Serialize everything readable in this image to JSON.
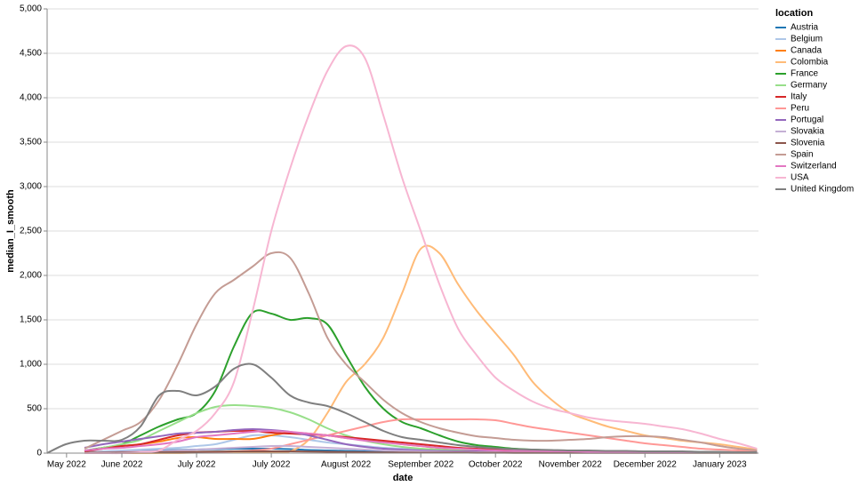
{
  "chart_data": {
    "type": "line",
    "x_label": "date",
    "y_label": "median_I_smooth",
    "legend_title": "location",
    "legend": "right",
    "grid": true,
    "xlim": [
      0,
      9.52
    ],
    "xticks": [
      {
        "value": 0.26,
        "label": "May 2022"
      },
      {
        "value": 1,
        "label": "June 2022"
      },
      {
        "value": 2,
        "label": "July 2022"
      },
      {
        "value": 3,
        "label": "July 2022"
      },
      {
        "value": 4,
        "label": "August 2022"
      },
      {
        "value": 5,
        "label": "September 2022"
      },
      {
        "value": 6,
        "label": "October 2022"
      },
      {
        "value": 7,
        "label": "November 2022"
      },
      {
        "value": 8,
        "label": "December 2022"
      },
      {
        "value": 9,
        "label": "January 2023"
      }
    ],
    "ylim": [
      0,
      5000
    ],
    "yticks": [
      0,
      500,
      {
        "value": 1000,
        "label": "1,000"
      },
      {
        "value": 1500,
        "label": "1,500"
      },
      {
        "value": 2000,
        "label": "2,000"
      },
      {
        "value": 2500,
        "label": "2,500"
      },
      {
        "value": 3000,
        "label": "3,000"
      },
      {
        "value": 3500,
        "label": "3,500"
      },
      {
        "value": 4000,
        "label": "4,000"
      },
      {
        "value": 4500,
        "label": "4,500"
      },
      {
        "value": 5000,
        "label": "5,000"
      }
    ],
    "x": [
      0,
      0.25,
      0.5,
      0.75,
      1,
      1.25,
      1.5,
      1.75,
      2,
      2.25,
      2.5,
      2.75,
      3,
      3.25,
      3.5,
      3.75,
      4,
      4.25,
      4.5,
      4.75,
      5,
      5.25,
      5.5,
      5.75,
      6,
      6.25,
      6.5,
      6.75,
      7,
      7.25,
      7.5,
      7.75,
      8,
      8.25,
      8.5,
      8.75,
      9,
      9.25,
      9.5
    ],
    "series": [
      {
        "name": "Austria",
        "color": "#1f77b4",
        "values": [
          null,
          null,
          10,
          15,
          20,
          25,
          30,
          35,
          40,
          45,
          50,
          50,
          50,
          45,
          35,
          30,
          25,
          20,
          18,
          15,
          12,
          10,
          10,
          8,
          8,
          6,
          6,
          5,
          5,
          5,
          5,
          5,
          5,
          5,
          5,
          5,
          5,
          5,
          5
        ]
      },
      {
        "name": "Belgium",
        "color": "#aec7e8",
        "values": [
          null,
          null,
          10,
          20,
          30,
          40,
          50,
          60,
          80,
          100,
          150,
          200,
          200,
          180,
          150,
          120,
          100,
          80,
          60,
          50,
          40,
          30,
          25,
          20,
          15,
          12,
          10,
          10,
          8,
          8,
          6,
          6,
          5,
          5,
          5,
          5,
          5,
          5,
          5
        ]
      },
      {
        "name": "Canada",
        "color": "#ff7f0e",
        "values": [
          null,
          null,
          20,
          60,
          80,
          100,
          130,
          170,
          180,
          160,
          160,
          160,
          200,
          230,
          220,
          200,
          170,
          150,
          130,
          100,
          80,
          60,
          50,
          40,
          35,
          30,
          30,
          25,
          25,
          25,
          20,
          20,
          20,
          20,
          15,
          15,
          10,
          10,
          10
        ]
      },
      {
        "name": "Colombia",
        "color": "#ffbb78",
        "values": [
          null,
          null,
          0,
          0,
          0,
          0,
          0,
          0,
          5,
          5,
          10,
          10,
          10,
          20,
          150,
          450,
          800,
          1000,
          1300,
          1800,
          2300,
          2250,
          1900,
          1600,
          1350,
          1100,
          800,
          600,
          450,
          370,
          300,
          250,
          200,
          170,
          140,
          120,
          100,
          70,
          40
        ]
      },
      {
        "name": "France",
        "color": "#2ca02c",
        "values": [
          null,
          null,
          30,
          60,
          100,
          200,
          300,
          380,
          450,
          700,
          1200,
          1580,
          1570,
          1500,
          1520,
          1450,
          1100,
          750,
          500,
          350,
          280,
          200,
          130,
          90,
          70,
          50,
          40,
          30,
          25,
          20,
          20,
          15,
          15,
          15,
          10,
          10,
          10,
          10,
          10
        ]
      },
      {
        "name": "Germany",
        "color": "#98df8a",
        "values": [
          null,
          null,
          20,
          60,
          100,
          150,
          250,
          350,
          450,
          520,
          540,
          530,
          510,
          460,
          380,
          280,
          200,
          140,
          100,
          70,
          50,
          40,
          30,
          25,
          20,
          20,
          15,
          15,
          15,
          10,
          10,
          10,
          10,
          10,
          10,
          10,
          10,
          10,
          10
        ]
      },
      {
        "name": "Italy",
        "color": "#d62728",
        "values": [
          null,
          null,
          20,
          50,
          80,
          100,
          150,
          200,
          230,
          240,
          250,
          250,
          230,
          220,
          210,
          200,
          180,
          160,
          140,
          120,
          100,
          80,
          60,
          50,
          40,
          35,
          30,
          25,
          20,
          20,
          15,
          15,
          15,
          10,
          10,
          10,
          10,
          10,
          10
        ]
      },
      {
        "name": "Peru",
        "color": "#ff9896",
        "values": [
          null,
          null,
          0,
          0,
          0,
          5,
          5,
          10,
          10,
          10,
          20,
          30,
          50,
          100,
          150,
          200,
          250,
          300,
          350,
          380,
          380,
          380,
          380,
          380,
          370,
          330,
          290,
          260,
          230,
          200,
          170,
          140,
          110,
          90,
          70,
          50,
          40,
          30,
          20
        ]
      },
      {
        "name": "Portugal",
        "color": "#9467bd",
        "values": [
          null,
          null,
          60,
          100,
          130,
          160,
          190,
          220,
          230,
          240,
          260,
          270,
          260,
          240,
          200,
          150,
          100,
          70,
          50,
          40,
          30,
          25,
          20,
          20,
          15,
          15,
          15,
          10,
          10,
          10,
          10,
          10,
          10,
          10,
          10,
          10,
          10,
          10,
          10
        ]
      },
      {
        "name": "Slovakia",
        "color": "#c5b0d5",
        "values": [
          null,
          null,
          5,
          10,
          15,
          20,
          25,
          30,
          40,
          50,
          60,
          70,
          80,
          80,
          70,
          60,
          50,
          40,
          30,
          25,
          20,
          15,
          10,
          10,
          10,
          8,
          8,
          6,
          6,
          5,
          5,
          5,
          5,
          5,
          5,
          5,
          5,
          5,
          5
        ]
      },
      {
        "name": "Slovenia",
        "color": "#8c564b",
        "values": [
          null,
          null,
          5,
          5,
          8,
          10,
          10,
          12,
          15,
          18,
          20,
          20,
          20,
          20,
          18,
          15,
          12,
          10,
          8,
          6,
          5,
          5,
          5,
          4,
          4,
          3,
          3,
          3,
          3,
          3,
          3,
          3,
          3,
          3,
          3,
          3,
          3,
          3,
          3
        ]
      },
      {
        "name": "Spain",
        "color": "#c49c94",
        "values": [
          null,
          null,
          50,
          150,
          250,
          350,
          600,
          1000,
          1450,
          1800,
          1950,
          2100,
          2250,
          2200,
          1800,
          1300,
          1000,
          800,
          600,
          450,
          350,
          280,
          230,
          190,
          170,
          150,
          140,
          140,
          150,
          160,
          180,
          190,
          190,
          180,
          150,
          120,
          80,
          50,
          30
        ]
      },
      {
        "name": "Switzerland",
        "color": "#e377c2",
        "values": [
          null,
          null,
          30,
          50,
          60,
          80,
          100,
          130,
          180,
          200,
          220,
          240,
          250,
          240,
          220,
          200,
          170,
          140,
          120,
          100,
          80,
          60,
          50,
          40,
          30,
          25,
          25,
          20,
          20,
          15,
          15,
          15,
          10,
          10,
          10,
          10,
          10,
          10,
          10
        ]
      },
      {
        "name": "USA",
        "color": "#f7b6d2",
        "values": [
          null,
          null,
          0,
          0,
          0,
          10,
          30,
          150,
          250,
          450,
          800,
          1600,
          2500,
          3200,
          3800,
          4300,
          4580,
          4450,
          3800,
          3100,
          2500,
          1900,
          1400,
          1100,
          850,
          700,
          580,
          500,
          450,
          400,
          370,
          350,
          330,
          300,
          270,
          220,
          160,
          110,
          50
        ]
      },
      {
        "name": "United Kingdom",
        "color": "#7f7f7f",
        "values": [
          0,
          100,
          140,
          140,
          150,
          300,
          650,
          700,
          650,
          750,
          950,
          1000,
          850,
          650,
          570,
          530,
          450,
          350,
          250,
          180,
          150,
          120,
          90,
          70,
          55,
          45,
          40,
          35,
          30,
          30,
          25,
          25,
          20,
          20,
          20,
          15,
          15,
          10,
          10
        ]
      }
    ]
  }
}
